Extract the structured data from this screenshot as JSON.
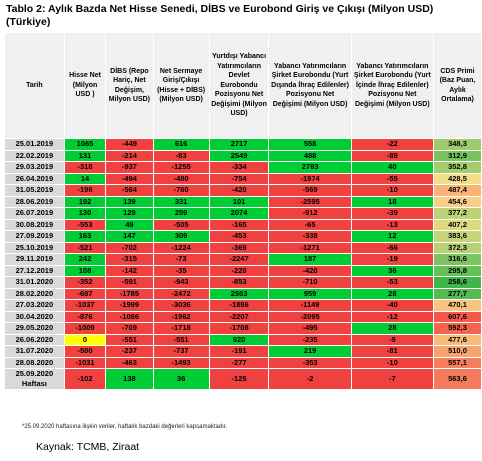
{
  "title": "Tablo 2: Aylık Bazda Net Hisse Senedi, DİBS ve Eurobond Giriş ve Çıkışı (Milyon USD) (Türkiye)",
  "headers": [
    "Tarih",
    "Hisse Net (Milyon USD )",
    "DİBS (Repo Hariç, Net Değişim, Milyon USD)",
    "Net Sermaye Giriş/Çıkışı (Hisse + DİBS) (Milyon USD)",
    "Yurtdışı Yabancı Yatırımcıların Devlet Eurobondu Pozisyonu Net Değişimi (Milyon USD)",
    "Yabancı Yatırımcıların Şirket Eurobondu (Yurt Dışında İhraç Edilenler) Pozisyonu Net Değişimi (Milyon USD)",
    "Yabancı Yatırımcıların Şirket Eurobondu (Yurt İçinde İhraç Edilenler) Pozisyonu Net Değişimi (Milyon USD)",
    "CDS Primi (Baz Puan, Aylık Ortalama)"
  ],
  "colors": {
    "date_bg": "#d9d9d9",
    "header_bg": "#f0f0f0",
    "pos": "#00cc33",
    "neg": "#f04040",
    "zero": "#ffff00",
    "cds_low": "#3fb64a",
    "cds_mid": "#f8e08c",
    "cds_high": "#f4584a"
  },
  "rows": [
    {
      "date": "25.01.2019",
      "hisse": "1065",
      "dibs": "-449",
      "net": "616",
      "devlet": "2717",
      "sirket_dis": "558",
      "sirket_ic": "-22",
      "cds": "348,3"
    },
    {
      "date": "22.02.2019",
      "hisse": "131",
      "dibs": "-214",
      "net": "-83",
      "devlet": "2549",
      "sirket_dis": "488",
      "sirket_ic": "-89",
      "cds": "312,9"
    },
    {
      "date": "29.03.2019",
      "hisse": "-318",
      "dibs": "-937",
      "net": "-1255",
      "devlet": "-334",
      "sirket_dis": "2783",
      "sirket_ic": "40",
      "cds": "352,8"
    },
    {
      "date": "26.04.2019",
      "hisse": "14",
      "dibs": "-494",
      "net": "-480",
      "devlet": "-754",
      "sirket_dis": "-1974",
      "sirket_ic": "-55",
      "cds": "428,5"
    },
    {
      "date": "31.05.2019",
      "hisse": "-196",
      "dibs": "-564",
      "net": "-760",
      "devlet": "-420",
      "sirket_dis": "-569",
      "sirket_ic": "-10",
      "cds": "487,4"
    },
    {
      "date": "28.06.2019",
      "hisse": "192",
      "dibs": "139",
      "net": "331",
      "devlet": "101",
      "sirket_dis": "-2595",
      "sirket_ic": "18",
      "cds": "454,6"
    },
    {
      "date": "26.07.2019",
      "hisse": "130",
      "dibs": "129",
      "net": "259",
      "devlet": "2074",
      "sirket_dis": "-912",
      "sirket_ic": "-39",
      "cds": "377,2"
    },
    {
      "date": "30.08.2019",
      "hisse": "-553",
      "dibs": "49",
      "net": "-505",
      "devlet": "-165",
      "sirket_dis": "-65",
      "sirket_ic": "-13",
      "cds": "407,2"
    },
    {
      "date": "27.09.2019",
      "hisse": "163",
      "dibs": "147",
      "net": "309",
      "devlet": "-453",
      "sirket_dis": "-338",
      "sirket_ic": "12",
      "cds": "383,6"
    },
    {
      "date": "25.10.2019",
      "hisse": "-521",
      "dibs": "-702",
      "net": "-1224",
      "devlet": "-369",
      "sirket_dis": "-1271",
      "sirket_ic": "-66",
      "cds": "372,3"
    },
    {
      "date": "29.11.2019",
      "hisse": "242",
      "dibs": "-315",
      "net": "-73",
      "devlet": "-2247",
      "sirket_dis": "187",
      "sirket_ic": "-19",
      "cds": "316,6"
    },
    {
      "date": "27.12.2019",
      "hisse": "108",
      "dibs": "-142",
      "net": "-35",
      "devlet": "-220",
      "sirket_dis": "-420",
      "sirket_ic": "36",
      "cds": "295,8"
    },
    {
      "date": "31.01.2020",
      "hisse": "-352",
      "dibs": "-591",
      "net": "-943",
      "devlet": "-853",
      "sirket_dis": "-710",
      "sirket_ic": "-53",
      "cds": "258,6"
    },
    {
      "date": "28.02.2020",
      "hisse": "-687",
      "dibs": "-1785",
      "net": "-2472",
      "devlet": "2983",
      "sirket_dis": "959",
      "sirket_ic": "28",
      "cds": "277,7"
    },
    {
      "date": "27.03.2020",
      "hisse": "-1037",
      "dibs": "-1999",
      "net": "-3036",
      "devlet": "-1886",
      "sirket_dis": "-1149",
      "sirket_ic": "-40",
      "cds": "470,1"
    },
    {
      "date": "30.04.2020",
      "hisse": "-876",
      "dibs": "-1086",
      "net": "-1962",
      "devlet": "-2207",
      "sirket_dis": "-2095",
      "sirket_ic": "-12",
      "cds": "607,6"
    },
    {
      "date": "29.05.2020",
      "hisse": "-1009",
      "dibs": "-709",
      "net": "-1718",
      "devlet": "-1708",
      "sirket_dis": "-495",
      "sirket_ic": "28",
      "cds": "592,3"
    },
    {
      "date": "26.06.2020",
      "hisse": "0",
      "dibs": "-551",
      "net": "-551",
      "devlet": "920",
      "sirket_dis": "-235",
      "sirket_ic": "-9",
      "cds": "477,6"
    },
    {
      "date": "31.07.2020",
      "hisse": "-500",
      "dibs": "-237",
      "net": "-737",
      "devlet": "-191",
      "sirket_dis": "219",
      "sirket_ic": "-81",
      "cds": "510,0"
    },
    {
      "date": "28.08.2020",
      "hisse": "-1031",
      "dibs": "-463",
      "net": "-1493",
      "devlet": "-277",
      "sirket_dis": "-353",
      "sirket_ic": "-10",
      "cds": "557,1"
    },
    {
      "date": "25.09.2020 Haftası",
      "hisse": "-102",
      "dibs": "138",
      "net": "36",
      "devlet": "-125",
      "sirket_dis": "-2",
      "sirket_ic": "-7",
      "cds": "563,6"
    }
  ],
  "note": "*25.09.2020 haftasına ilişkin veriler, haftalık bazdaki değerleri kapsamaktadır.",
  "source": "Kaynak: TCMB, Ziraat"
}
